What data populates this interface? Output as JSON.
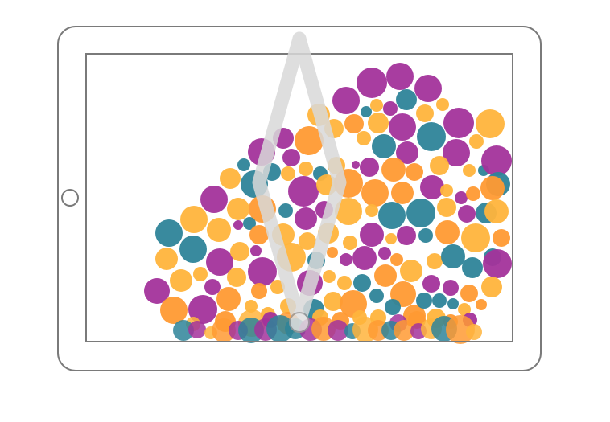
{
  "colors": {
    "frame": "#7a7a7a",
    "background": "#ffffff",
    "purple": "#a3339b",
    "teal": "#2e8499",
    "orange": "#ff9a33",
    "amber": "#ffb43c",
    "gesture": "#d9d9d9"
  },
  "icons": {
    "home_button": "circle",
    "gesture": "pinch-gesture-icon"
  }
}
